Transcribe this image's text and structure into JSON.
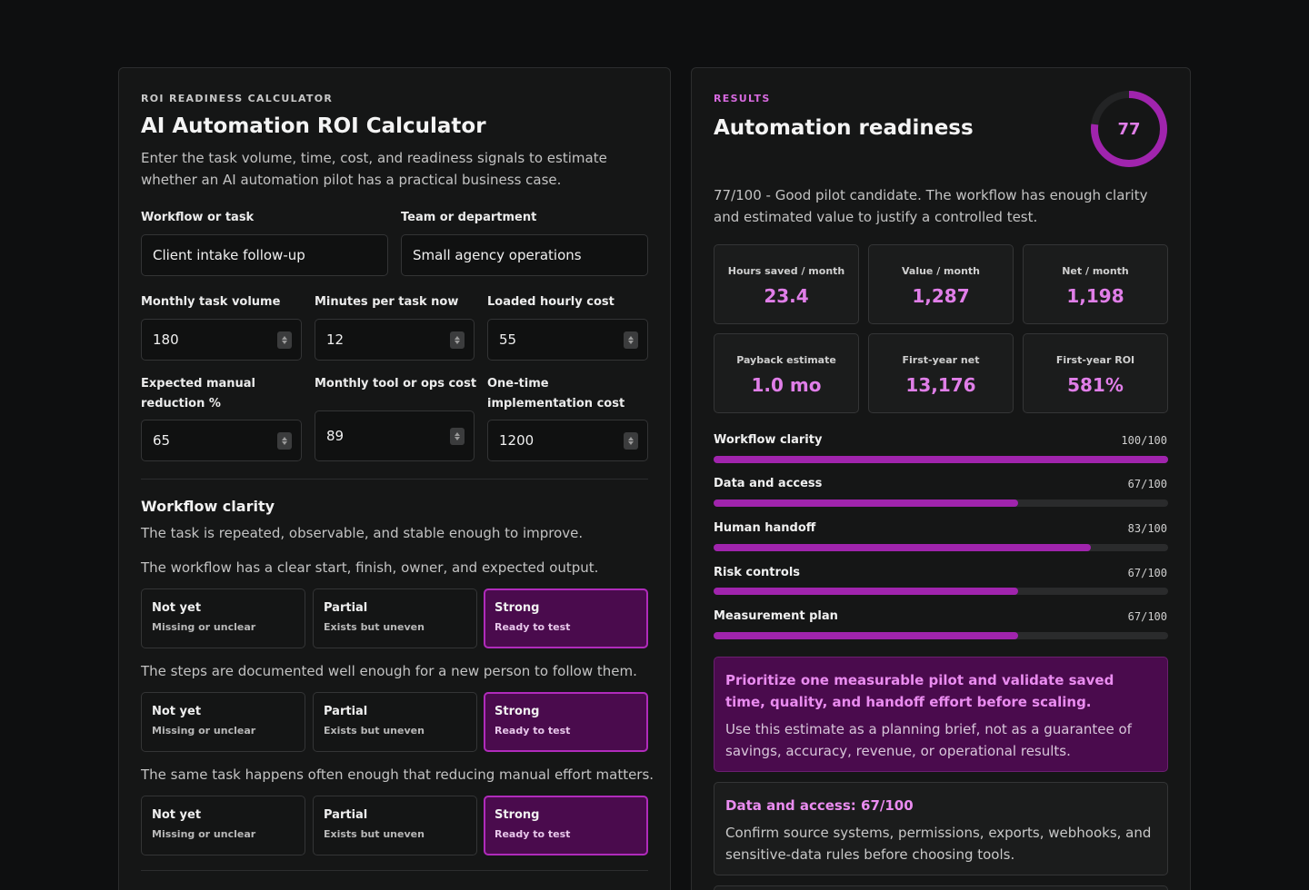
{
  "calculator": {
    "eyebrow": "ROI READINESS CALCULATOR",
    "title": "AI Automation ROI Calculator",
    "intro": "Enter the task volume, time, cost, and readiness signals to estimate whether an AI automation pilot has a practical business case.",
    "workflow_label": "Workflow or task",
    "workflow_value": "Client intake follow-up",
    "team_label": "Team or department",
    "team_value": "Small agency operations",
    "volume_label": "Monthly task volume",
    "volume_value": "180",
    "minutes_label": "Minutes per task now",
    "minutes_value": "12",
    "hourly_label": "Loaded hourly cost",
    "hourly_value": "55",
    "reduction_label": "Expected manual reduction %",
    "reduction_value": "65",
    "toolcost_label": "Monthly tool or ops cost",
    "toolcost_value": "89",
    "impl_label": "One-time implementation cost",
    "impl_value": "1200"
  },
  "section": {
    "title": "Workflow clarity",
    "description": "The task is repeated, observable, and stable enough to improve.",
    "questions": [
      "The workflow has a clear start, finish, owner, and expected output.",
      "The steps are documented well enough for a new person to follow them.",
      "The same task happens often enough that reducing manual effort matters."
    ],
    "options": [
      {
        "title": "Not yet",
        "sub": "Missing or unclear"
      },
      {
        "title": "Partial",
        "sub": "Exists but uneven"
      },
      {
        "title": "Strong",
        "sub": "Ready to test"
      }
    ],
    "selected_option": "Strong"
  },
  "results": {
    "eyebrow": "RESULTS",
    "title": "Automation readiness",
    "score": "77",
    "score_fraction": 0.77,
    "accent": "#a024ad",
    "summary": "77/100 - Good pilot candidate. The workflow has enough clarity and estimated value to justify a controlled test.",
    "metrics": [
      {
        "label": "Hours saved / month",
        "value": "23.4"
      },
      {
        "label": "Value / month",
        "value": "1,287"
      },
      {
        "label": "Net / month",
        "value": "1,198"
      },
      {
        "label": "Payback estimate",
        "value": "1.0 mo"
      },
      {
        "label": "First-year net",
        "value": "13,176"
      },
      {
        "label": "First-year ROI",
        "value": "581%"
      }
    ],
    "bars": [
      {
        "label": "Workflow clarity",
        "value": "100/100",
        "fraction": 1.0
      },
      {
        "label": "Data and access",
        "value": "67/100",
        "fraction": 0.67
      },
      {
        "label": "Human handoff",
        "value": "83/100",
        "fraction": 0.83
      },
      {
        "label": "Risk controls",
        "value": "67/100",
        "fraction": 0.67
      },
      {
        "label": "Measurement plan",
        "value": "67/100",
        "fraction": 0.67
      }
    ],
    "recommendation_title": "Prioritize one measurable pilot and validate saved time, quality, and handoff effort before scaling.",
    "recommendation_body": "Use this estimate as a planning brief, not as a guarantee of savings, accuracy, revenue, or operational results.",
    "gap_title": "Data and access: 67/100",
    "gap_body": "Confirm source systems, permissions, exports, webhooks, and sensitive-data rules before choosing tools."
  }
}
